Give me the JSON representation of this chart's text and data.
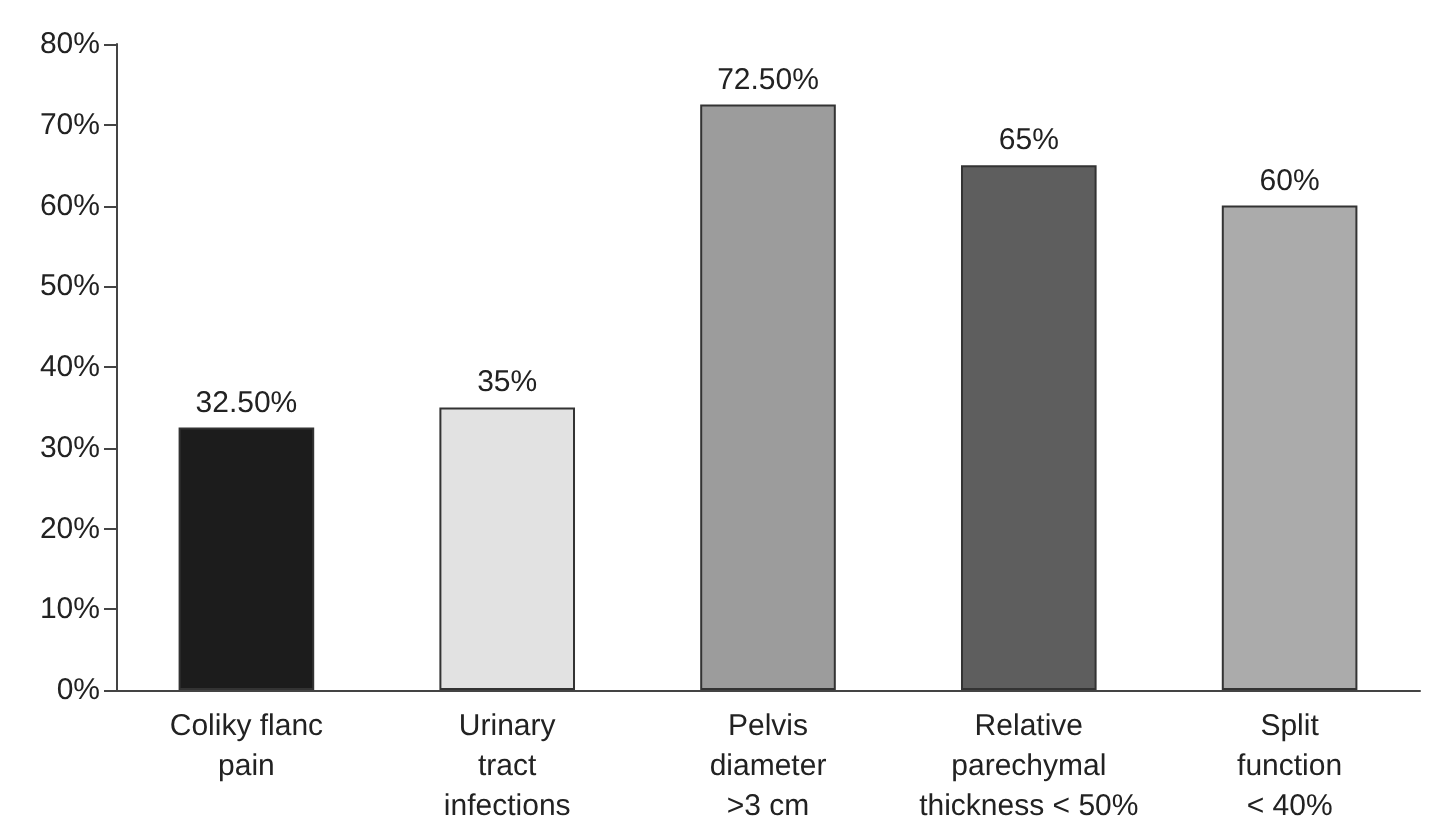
{
  "chart_data": {
    "type": "bar",
    "categories": [
      "Coliky flanc\npain",
      "Urinary\ntract\ninfections",
      "Pelvis\ndiameter\n>3 cm",
      "Relative\nparechymal\nthickness < 50%",
      "Split\nfunction\n< 40%"
    ],
    "values": [
      32.5,
      35,
      72.5,
      65,
      60
    ],
    "value_labels": [
      "32.50%",
      "35%",
      "72.50%",
      "65%",
      "60%"
    ],
    "colors": [
      "#1c1c1c",
      "#e2e2e2",
      "#9c9c9c",
      "#5e5e5e",
      "#ababab"
    ],
    "ylim": [
      0,
      80
    ],
    "yticks": [
      {
        "value": 0,
        "label": "0%"
      },
      {
        "value": 10,
        "label": "10%"
      },
      {
        "value": 20,
        "label": "20%"
      },
      {
        "value": 30,
        "label": "30%"
      },
      {
        "value": 40,
        "label": "40%"
      },
      {
        "value": 50,
        "label": "50%"
      },
      {
        "value": 60,
        "label": "60%"
      },
      {
        "value": 70,
        "label": "70%"
      },
      {
        "value": 80,
        "label": "80%"
      }
    ],
    "grid": false
  }
}
